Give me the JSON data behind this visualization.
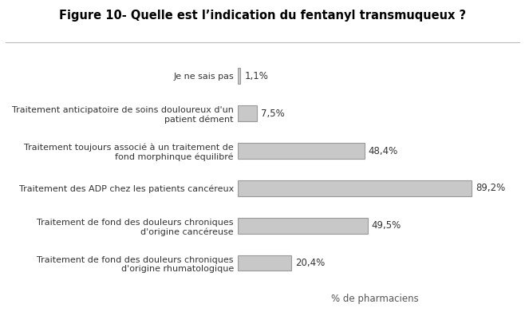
{
  "title": "Figure 10- Quelle est l’indication du fentanyl transmuqueux ?",
  "categories": [
    "Je ne sais pas",
    "Traitement anticipatoire de soins douloureux d'un\npatient dément",
    "Traitement toujours associé à un traitement de\nfond morphinque équilibré",
    "Traitement des ADP chez les patients cancéreux",
    "Traitement de fond des douleurs chroniques\nd'origine cancéreuse",
    "Traitement de fond des douleurs chroniques\nd'origine rhumatologique"
  ],
  "values": [
    1.1,
    7.5,
    48.4,
    89.2,
    49.5,
    20.4
  ],
  "labels": [
    "1,1%",
    "7,5%",
    "48,4%",
    "89,2%",
    "49,5%",
    "20,4%"
  ],
  "bar_color": "#c8c8c8",
  "bar_edgecolor": "#999999",
  "xlabel": "% de pharmaciens",
  "xlim": [
    0,
    105
  ],
  "title_fontsize": 10.5,
  "label_fontsize": 8.5,
  "tick_fontsize": 8,
  "xlabel_fontsize": 8.5,
  "background_color": "#ffffff",
  "bar_height": 0.42
}
